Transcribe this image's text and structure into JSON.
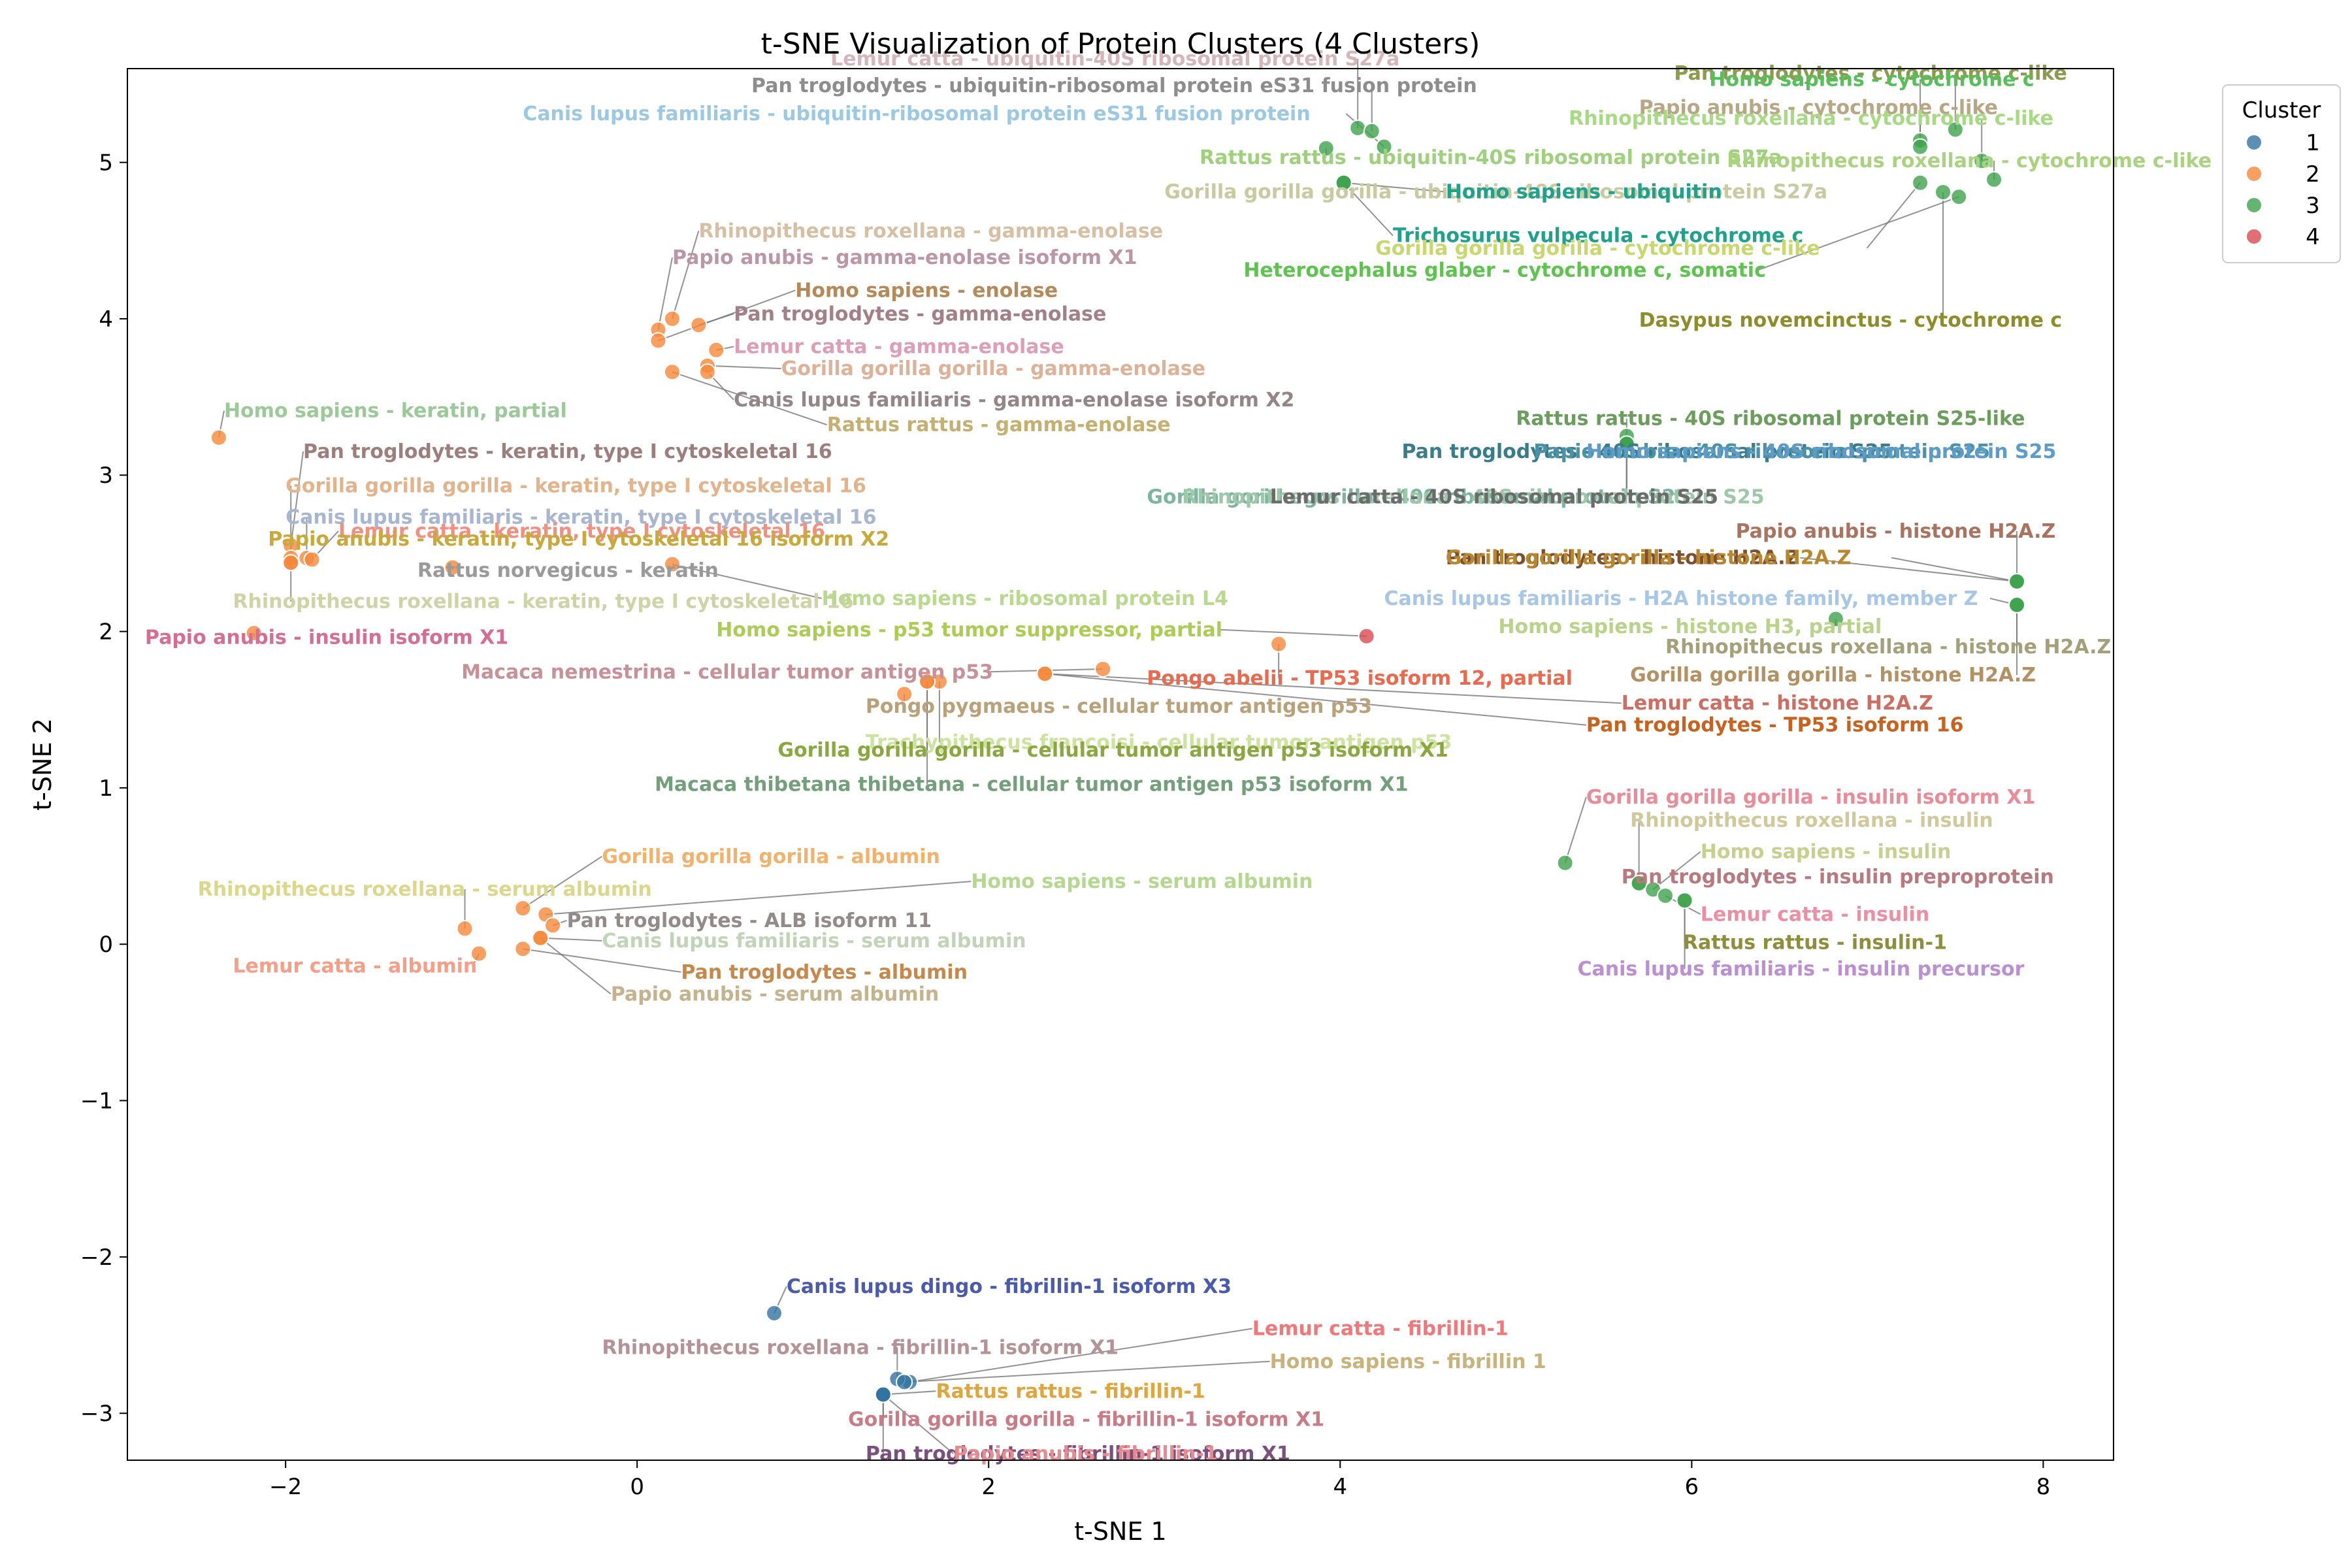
{
  "chart_data": {
    "type": "scatter",
    "title": "t-SNE Visualization of Protein Clusters (4 Clusters)",
    "xlabel": "t-SNE 1",
    "ylabel": "t-SNE 2",
    "xlim": [
      -2.9,
      8.4
    ],
    "ylim": [
      -3.3,
      5.6
    ],
    "xticks": [
      -2,
      0,
      2,
      4,
      6,
      8
    ],
    "yticks": [
      -3,
      -2,
      -1,
      0,
      1,
      2,
      3,
      4,
      5
    ],
    "grid": false,
    "legend": {
      "title": "Cluster",
      "placement": "outside-top-right",
      "entries": [
        "1",
        "2",
        "3",
        "4"
      ]
    },
    "cluster_colors": {
      "1": "#3274a1",
      "2": "#f5883a",
      "3": "#3fa34d",
      "4": "#d94a4f"
    },
    "points": [
      {
        "x": 0.78,
        "y": -2.36,
        "c": 1,
        "label": "Canis lupus dingo - fibrillin-1 isoform X3",
        "lx": 0.85,
        "ly": -2.23,
        "color": "#4a5bab"
      },
      {
        "x": 1.55,
        "y": -2.8,
        "c": 1,
        "label": "Lemur catta - fibrillin-1",
        "lx": 3.5,
        "ly": -2.5,
        "color": "#f0787a"
      },
      {
        "x": 1.48,
        "y": -2.78,
        "c": 1,
        "label": "Rhinopithecus roxellana - fibrillin-1 isoform X1",
        "lx": -0.2,
        "ly": -2.62,
        "color": "#b49298"
      },
      {
        "x": 1.52,
        "y": -2.8,
        "c": 1,
        "label": "Homo sapiens - fibrillin 1",
        "lx": 3.6,
        "ly": -2.71,
        "color": "#c9b37c"
      },
      {
        "x": 1.4,
        "y": -2.88,
        "c": 1,
        "label": "Rattus rattus - fibrillin-1",
        "lx": 1.7,
        "ly": -2.9,
        "color": "#e0a53c"
      },
      {
        "x": 1.4,
        "y": -2.88,
        "c": 1,
        "label": "Gorilla gorilla gorilla - fibrillin-1 isoform X1",
        "lx": 1.2,
        "ly": -3.08,
        "color": "#c97b86"
      },
      {
        "x": 1.4,
        "y": -2.88,
        "c": 1,
        "label": "Pan troglodytes - fibrillin-1 isoform X1",
        "lx": 1.3,
        "ly": -3.3,
        "color": "#7d4f7e"
      },
      {
        "x": 1.4,
        "y": -2.88,
        "c": 1,
        "label": "Papio anubis - fibrillin-1",
        "lx": 1.8,
        "ly": -3.3,
        "color": "#e88b8f"
      },
      {
        "x": -2.38,
        "y": 3.24,
        "c": 2,
        "label": "Homo sapiens - keratin, partial",
        "lx": -2.35,
        "ly": 3.37,
        "color": "#9cc99a"
      },
      {
        "x": -1.97,
        "y": 2.55,
        "c": 2,
        "label": "Pan troglodytes - keratin, type I cytoskeletal 16",
        "lx": -1.9,
        "ly": 3.11,
        "color": "#9c7f7d"
      },
      {
        "x": -1.97,
        "y": 2.47,
        "c": 2,
        "label": "Gorilla gorilla gorilla - keratin, type I cytoskeletal 16",
        "lx": -2.0,
        "ly": 2.89,
        "color": "#e3b48c"
      },
      {
        "x": -1.88,
        "y": 2.47,
        "c": 2,
        "label": "Canis lupus familiaris - keratin, type I cytoskeletal 16",
        "lx": -2.0,
        "ly": 2.69,
        "color": "#a8b6d0"
      },
      {
        "x": -1.85,
        "y": 2.46,
        "c": 2,
        "label": "Lemur catta - keratin, type I cytoskeletal 16",
        "lx": -1.7,
        "ly": 2.6,
        "color": "#f09080"
      },
      {
        "x": -1.97,
        "y": 2.44,
        "c": 2,
        "label": "Papio anubis - keratin, type I cytoskeletal 16 isoform X2",
        "lx": -2.1,
        "ly": 2.55,
        "color": "#c8a93c"
      },
      {
        "x": -1.05,
        "y": 2.41,
        "c": 2,
        "label": "Rattus norvegicus - keratin",
        "lx": -1.25,
        "ly": 2.35,
        "color": "#9a9a9a"
      },
      {
        "x": -1.97,
        "y": 2.44,
        "c": 2,
        "label": "Rhinopithecus roxellana - keratin, type I cytoskeletal 16",
        "lx": -2.3,
        "ly": 2.15,
        "color": "#cfd4a6"
      },
      {
        "x": -2.18,
        "y": 1.99,
        "c": 2,
        "label": "Papio anubis - insulin isoform X1",
        "lx": -2.8,
        "ly": 1.92,
        "color": "#d46f91"
      },
      {
        "x": 0.2,
        "y": 2.43,
        "c": 2,
        "label": "Homo sapiens - ribosomal protein L4",
        "lx": 1.05,
        "ly": 2.17,
        "color": "#b9d98f"
      },
      {
        "x": 0.2,
        "y": 4.0,
        "c": 2,
        "label": "Rhinopithecus roxellana - gamma-enolase",
        "lx": 0.35,
        "ly": 4.52,
        "color": "#d6bfa2"
      },
      {
        "x": 0.12,
        "y": 3.93,
        "c": 2,
        "label": "Papio anubis - gamma-enolase isoform X1",
        "lx": 0.2,
        "ly": 4.35,
        "color": "#bb97a6"
      },
      {
        "x": 0.12,
        "y": 3.86,
        "c": 2,
        "label": "Homo sapiens - enolase",
        "lx": 0.9,
        "ly": 4.14,
        "color": "#b48a5a"
      },
      {
        "x": 0.35,
        "y": 3.96,
        "c": 2,
        "label": "Pan troglodytes - gamma-enolase",
        "lx": 0.55,
        "ly": 3.99,
        "color": "#a38088"
      },
      {
        "x": 0.45,
        "y": 3.8,
        "c": 2,
        "label": "Lemur catta - gamma-enolase",
        "lx": 0.55,
        "ly": 3.78,
        "color": "#dc9fb6"
      },
      {
        "x": 0.4,
        "y": 3.7,
        "c": 2,
        "label": "Gorilla gorilla gorilla - gamma-enolase",
        "lx": 0.82,
        "ly": 3.64,
        "color": "#ddb298"
      },
      {
        "x": 0.4,
        "y": 3.66,
        "c": 2,
        "label": "Canis lupus familiaris - gamma-enolase isoform X2",
        "lx": 0.55,
        "ly": 3.44,
        "color": "#938588"
      },
      {
        "x": 0.2,
        "y": 3.66,
        "c": 2,
        "label": "Rattus rattus - gamma-enolase",
        "lx": 1.08,
        "ly": 3.28,
        "color": "#c5b072"
      },
      {
        "x": -0.65,
        "y": 0.23,
        "c": 2,
        "label": "Gorilla gorilla gorilla - albumin",
        "lx": -0.2,
        "ly": 0.52,
        "color": "#f2b26b"
      },
      {
        "x": -0.98,
        "y": 0.1,
        "c": 2,
        "label": "Rhinopithecus roxellana - serum albumin",
        "lx": -2.5,
        "ly": 0.31,
        "color": "#dbd88d"
      },
      {
        "x": -0.52,
        "y": 0.19,
        "c": 2,
        "label": "Homo sapiens - serum albumin",
        "lx": 1.9,
        "ly": 0.36,
        "color": "#b4d88f"
      },
      {
        "x": -0.48,
        "y": 0.12,
        "c": 2,
        "label": "Pan troglodytes - ALB isoform 11",
        "lx": -0.4,
        "ly": 0.11,
        "color": "#938a8a"
      },
      {
        "x": -0.55,
        "y": 0.04,
        "c": 2,
        "label": "Canis lupus familiaris - serum albumin",
        "lx": -0.2,
        "ly": -0.02,
        "color": "#c2d4b8"
      },
      {
        "x": -0.9,
        "y": -0.06,
        "c": 2,
        "label": "Lemur catta - albumin",
        "lx": -2.3,
        "ly": -0.18,
        "color": "#f69e86"
      },
      {
        "x": -0.65,
        "y": -0.03,
        "c": 2,
        "label": "Pan troglodytes - albumin",
        "lx": 0.25,
        "ly": -0.22,
        "color": "#c6884b"
      },
      {
        "x": -0.55,
        "y": 0.04,
        "c": 2,
        "label": "Papio anubis - serum albumin",
        "lx": -0.15,
        "ly": -0.36,
        "color": "#c4b38d"
      },
      {
        "x": 4.15,
        "y": 1.97,
        "c": 4,
        "label": "Homo sapiens - p53 tumor suppressor, partial",
        "lx": 0.45,
        "ly": 1.97,
        "color": "#adcc55"
      },
      {
        "x": 3.65,
        "y": 1.92,
        "c": 2,
        "label": "Pongo abelii - TP53 isoform 12, partial",
        "lx": 2.9,
        "ly": 1.66,
        "color": "#e96a4e"
      },
      {
        "x": 2.65,
        "y": 1.76,
        "c": 2,
        "label": "Macaca nemestrina - cellular tumor antigen p53",
        "lx": -1.0,
        "ly": 1.7,
        "color": "#c89198"
      },
      {
        "x": 2.32,
        "y": 1.73,
        "c": 2,
        "label": "Lemur catta - histone H2A.Z",
        "lx": 5.6,
        "ly": 1.5,
        "color": "#cd6e62"
      },
      {
        "x": 1.52,
        "y": 1.6,
        "c": 2,
        "label": "Pongo pygmaeus - cellular tumor antigen p53",
        "lx": 1.3,
        "ly": 1.48,
        "color": "#b9a27a"
      },
      {
        "x": 1.72,
        "y": 1.68,
        "c": 2,
        "label": "Trachypithecus francoisi - cellular tumor antigen p53",
        "lx": 1.3,
        "ly": 1.25,
        "color": "#cfe3a0"
      },
      {
        "x": 1.65,
        "y": 1.68,
        "c": 2,
        "label": "Gorilla gorilla gorilla - cellular tumor antigen p53 isoform X1",
        "lx": 0.8,
        "ly": 1.2,
        "color": "#8aa83f"
      },
      {
        "x": 1.65,
        "y": 1.68,
        "c": 2,
        "label": "Macaca thibetana thibetana - cellular tumor antigen p53 isoform X1",
        "lx": 0.1,
        "ly": 0.98,
        "color": "#73a07a"
      },
      {
        "x": 2.32,
        "y": 1.73,
        "c": 2,
        "label": "Pan troglodytes - TP53 isoform 16",
        "lx": 5.4,
        "ly": 1.36,
        "color": "#c8621f"
      },
      {
        "x": 4.1,
        "y": 5.22,
        "c": 3,
        "label": "Lemur catta - ubiquitin-40S ribosomal protein S27a",
        "lx": 1.1,
        "ly": 5.62,
        "color": "#d5b7bb"
      },
      {
        "x": 4.18,
        "y": 5.2,
        "c": 3,
        "label": "Pan troglodytes - ubiquitin-ribosomal protein eS31 fusion protein",
        "lx": 0.65,
        "ly": 5.45,
        "color": "#8d8d8d"
      },
      {
        "x": 4.25,
        "y": 5.1,
        "c": 3,
        "label": "Canis lupus familiaris - ubiquitin-ribosomal protein eS31 fusion protein",
        "lx": -0.65,
        "ly": 5.27,
        "color": "#9bc9e3"
      },
      {
        "x": 3.92,
        "y": 5.09,
        "c": 3,
        "label": "Rattus rattus - ubiquitin-40S ribosomal protein S27a",
        "lx": 3.2,
        "ly": 4.99,
        "color": "#9fd07d"
      },
      {
        "x": 4.02,
        "y": 4.87,
        "c": 3,
        "label": "Gorilla gorilla gorilla - ubiquitin-40S ribosomal protein S27a",
        "lx": 3.0,
        "ly": 4.77,
        "color": "#c8caa0"
      },
      {
        "x": 4.02,
        "y": 4.87,
        "c": 3,
        "label": "Homo sapiens - ubiquitin",
        "lx": 4.6,
        "ly": 4.77,
        "color": "#1fa18c"
      },
      {
        "x": 4.02,
        "y": 4.87,
        "c": 3,
        "label": "Trichosurus vulpecula - cytochrome c",
        "lx": 4.3,
        "ly": 4.49,
        "color": "#1fa18c"
      },
      {
        "x": 7.3,
        "y": 4.87,
        "c": 3,
        "label": "Gorilla gorilla gorilla - cytochrome c-like",
        "lx": 4.2,
        "ly": 4.41,
        "color": "#c8d86f"
      },
      {
        "x": 7.52,
        "y": 4.78,
        "c": 3,
        "label": "Heterocephalus glaber - cytochrome c, somatic",
        "lx": 3.45,
        "ly": 4.27,
        "color": "#5fc34f"
      },
      {
        "x": 7.43,
        "y": 4.81,
        "c": 3,
        "label": "Dasypus novemcinctus - cytochrome c",
        "lx": 5.7,
        "ly": 3.95,
        "color": "#8e8d2b"
      },
      {
        "x": 7.5,
        "y": 5.21,
        "c": 3,
        "label": "Pan troglodytes - cytochrome c-like",
        "lx": 5.9,
        "ly": 5.53,
        "color": "#8e9a4e"
      },
      {
        "x": 7.3,
        "y": 5.14,
        "c": 3,
        "label": "Homo sapiens - cytochrome c",
        "lx": 6.1,
        "ly": 5.49,
        "color": "#55c05a"
      },
      {
        "x": 7.3,
        "y": 5.1,
        "c": 3,
        "label": "Papio anubis - cytochrome c-like",
        "lx": 5.7,
        "ly": 5.31,
        "color": "#b7a785"
      },
      {
        "x": 7.65,
        "y": 5.01,
        "c": 3,
        "label": "Rhinopithecus roxellana - cytochrome c-like",
        "lx": 5.3,
        "ly": 5.24,
        "color": "#a8d985"
      },
      {
        "x": 7.72,
        "y": 4.89,
        "c": 3,
        "label": "Rhinopithecus roxellana - cytochrome c-like",
        "lx": 6.2,
        "ly": 4.97,
        "color": "#a9d37f"
      },
      {
        "x": 5.63,
        "y": 3.25,
        "c": 3,
        "label": "Rattus rattus - 40S ribosomal protein S25-like",
        "lx": 5.0,
        "ly": 3.32,
        "color": "#6b9d5c"
      },
      {
        "x": 5.63,
        "y": 3.2,
        "c": 3,
        "label": "Pan troglodytes - 40S ribosomal protein S25",
        "lx": 4.35,
        "ly": 3.11,
        "color": "#3a7d8a"
      },
      {
        "x": 5.63,
        "y": 3.2,
        "c": 3,
        "label": "Papio anubis - 40S ribosomal protein S25",
        "lx": 5.1,
        "ly": 3.11,
        "color": "#4b92a8"
      },
      {
        "x": 5.63,
        "y": 3.2,
        "c": 3,
        "label": "Homo sapiens - 40S ribosomal protein S25",
        "lx": 5.4,
        "ly": 3.11,
        "color": "#5d9cc8"
      },
      {
        "x": 5.63,
        "y": 3.2,
        "c": 3,
        "label": "Gorilla gorilla gorilla - 40S ribosomal protein S25",
        "lx": 2.9,
        "ly": 2.82,
        "color": "#7cb5a0"
      },
      {
        "x": 5.63,
        "y": 3.2,
        "c": 3,
        "label": "Rhinopithecus roxellana - 40S ribosomal protein S25",
        "lx": 3.1,
        "ly": 2.82,
        "color": "#9fc7a9"
      },
      {
        "x": 5.63,
        "y": 3.2,
        "c": 3,
        "label": "Lemur catta - 40S ribosomal protein S25",
        "lx": 3.6,
        "ly": 2.82,
        "color": "#6b6b6b"
      },
      {
        "x": 7.85,
        "y": 2.32,
        "c": 3,
        "label": "Papio anubis - histone H2A.Z",
        "lx": 6.25,
        "ly": 2.6,
        "color": "#a9735f"
      },
      {
        "x": 7.85,
        "y": 2.32,
        "c": 3,
        "label": "Pan troglodytes - histone H2A.Z",
        "lx": 4.6,
        "ly": 2.43,
        "color": "#7d4f2f"
      },
      {
        "x": 7.85,
        "y": 2.32,
        "c": 3,
        "label": "Gorilla gorilla gorilla - histone H2A.Z",
        "lx": 4.6,
        "ly": 2.43,
        "color": "#b8862f"
      },
      {
        "x": 7.85,
        "y": 2.17,
        "c": 3,
        "label": "Canis lupus familiaris - H2A histone family, member Z",
        "lx": 4.25,
        "ly": 2.17,
        "color": "#a8c6e6"
      },
      {
        "x": 6.82,
        "y": 2.08,
        "c": 3,
        "label": "Homo sapiens - histone H3, partial",
        "lx": 4.9,
        "ly": 1.99,
        "color": "#b9d38a"
      },
      {
        "x": 7.85,
        "y": 2.17,
        "c": 3,
        "label": "Rhinopithecus roxellana - histone H2A.Z",
        "lx": 5.85,
        "ly": 1.86,
        "color": "#a6a07a"
      },
      {
        "x": 7.85,
        "y": 2.17,
        "c": 3,
        "label": "Gorilla gorilla gorilla - histone H2A.Z",
        "lx": 5.65,
        "ly": 1.68,
        "color": "#b39163"
      },
      {
        "x": 5.28,
        "y": 0.52,
        "c": 3,
        "label": "Gorilla gorilla gorilla - insulin isoform X1",
        "lx": 5.4,
        "ly": 0.9,
        "color": "#e88c99"
      },
      {
        "x": 5.7,
        "y": 0.39,
        "c": 3,
        "label": "Rhinopithecus roxellana - insulin",
        "lx": 5.65,
        "ly": 0.75,
        "color": "#d0c99c"
      },
      {
        "x": 5.78,
        "y": 0.35,
        "c": 3,
        "label": "Homo sapiens - insulin",
        "lx": 6.05,
        "ly": 0.55,
        "color": "#c7d08f"
      },
      {
        "x": 5.7,
        "y": 0.39,
        "c": 3,
        "label": "Pan troglodytes - insulin preproprotein",
        "lx": 5.6,
        "ly": 0.39,
        "color": "#b8797f"
      },
      {
        "x": 5.85,
        "y": 0.31,
        "c": 3,
        "label": "Lemur catta - insulin",
        "lx": 6.05,
        "ly": 0.15,
        "color": "#ec8fa2"
      },
      {
        "x": 5.96,
        "y": 0.28,
        "c": 3,
        "label": "Rattus rattus - insulin-1",
        "lx": 5.95,
        "ly": -0.03,
        "color": "#8e8f3c"
      },
      {
        "x": 5.96,
        "y": 0.28,
        "c": 3,
        "label": "Canis lupus familiaris - insulin precursor",
        "lx": 5.35,
        "ly": -0.2,
        "color": "#bb8fd2"
      }
    ]
  }
}
